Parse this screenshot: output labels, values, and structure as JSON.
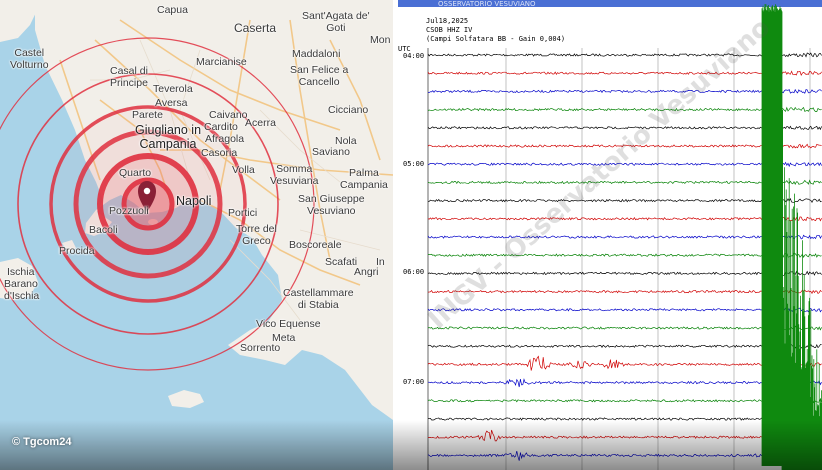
{
  "map": {
    "colors": {
      "sea": "#a9d3e8",
      "land": "#f2efe9",
      "ring": "#e0303f",
      "ring_fill": "#e85a66",
      "pin": "#8a2036"
    },
    "marker": {
      "name": "map-pin-icon"
    },
    "towns": [
      {
        "label": "Capua"
      },
      {
        "label": "Caserta"
      },
      {
        "label": "Sant'Agata de'\nGoti"
      },
      {
        "label": "Mon"
      },
      {
        "label": "Castel\nVolturno"
      },
      {
        "label": "Marcianise"
      },
      {
        "label": "Maddaloni"
      },
      {
        "label": "Casal di\nPrincipe"
      },
      {
        "label": "Teverola"
      },
      {
        "label": "San Felice a\nCancello"
      },
      {
        "label": "Aversa"
      },
      {
        "label": "Parete"
      },
      {
        "label": "Caivano"
      },
      {
        "label": "Cicciano"
      },
      {
        "label": "Cardito"
      },
      {
        "label": "Acerra"
      },
      {
        "label": "Afragola"
      },
      {
        "label": "Nola"
      },
      {
        "label": "Saviano"
      },
      {
        "label": "Casoria"
      },
      {
        "label": "Volla"
      },
      {
        "label": "Somma\nVesuviana"
      },
      {
        "label": "Palma\nCampania"
      },
      {
        "label": "Quarto"
      },
      {
        "label": "San Giuseppe\nVesuviano"
      },
      {
        "label": "Pozzuoli"
      },
      {
        "label": "Portici"
      },
      {
        "label": "Bacoli"
      },
      {
        "label": "Torre del\nGreco"
      },
      {
        "label": "Procida"
      },
      {
        "label": "Boscoreale"
      },
      {
        "label": "Scafati"
      },
      {
        "label": "Angri"
      },
      {
        "label": "In"
      },
      {
        "label": "Ischia"
      },
      {
        "label": "Barano"
      },
      {
        "label": "d'Ischia"
      },
      {
        "label": "Castellammare\ndi Stabia"
      },
      {
        "label": "Vico Equense"
      },
      {
        "label": "Meta"
      },
      {
        "label": "Sorrento"
      }
    ],
    "cities": [
      {
        "label": "Giugliano in\nCampania"
      },
      {
        "label": "Napoli"
      }
    ]
  },
  "seismogram": {
    "header": {
      "date": "Jul18,2025",
      "station": "CSOB HHZ IV",
      "location": "(Campi Solfatara BB  - Gain 0,004)"
    },
    "title_banner": "OSSERVATORIO VESUVIANO",
    "utc_label": "UTC",
    "time_labels": [
      "04:00",
      "05:00",
      "06:00",
      "07:00"
    ],
    "watermark_text": "INGV - Osservatorio Vesuviano",
    "trace_colors": [
      "#000000",
      "#d00000",
      "#0000c8",
      "#008000"
    ],
    "colors": {
      "quake": "#0f8a0f",
      "grid": "#9a9a9a"
    }
  },
  "watermark": "© Tgcom24"
}
